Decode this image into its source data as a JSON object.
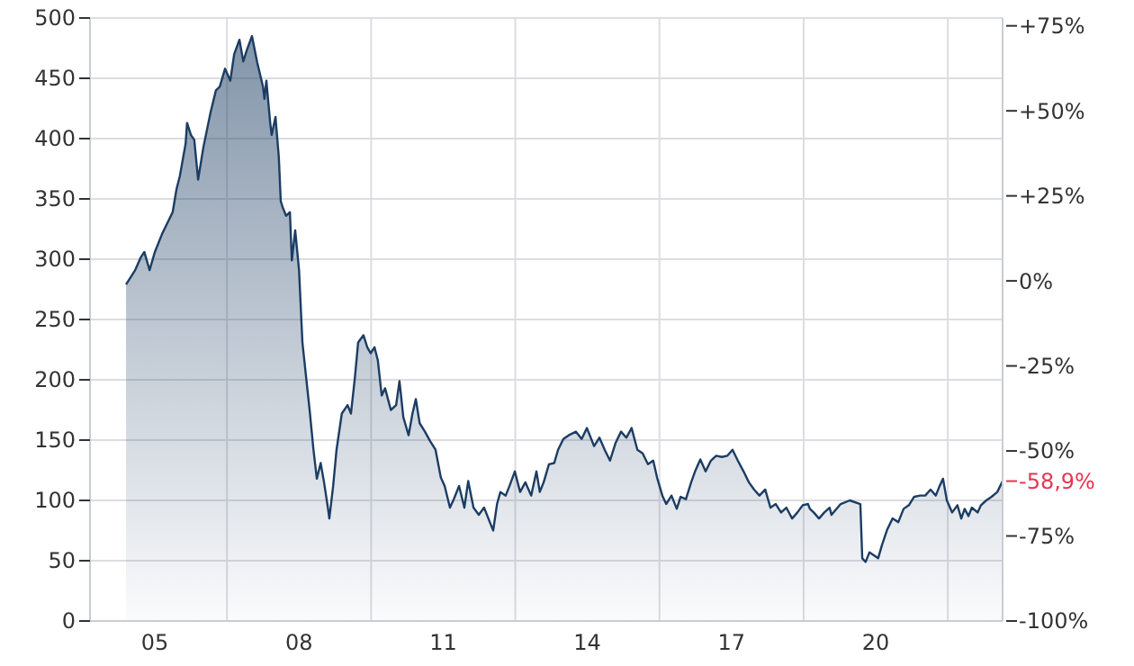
{
  "chart_data": {
    "type": "area",
    "x": [
      2004.4,
      2004.59,
      2004.7,
      2004.78,
      2004.89,
      2005.0,
      2005.15,
      2005.26,
      2005.37,
      2005.45,
      2005.52,
      2005.64,
      2005.67,
      2005.75,
      2005.82,
      2005.9,
      2006.01,
      2006.16,
      2006.27,
      2006.35,
      2006.46,
      2006.57,
      2006.65,
      2006.76,
      2006.84,
      2006.91,
      2007.02,
      2007.13,
      2007.25,
      2007.28,
      2007.32,
      2007.4,
      2007.43,
      2007.51,
      2007.58,
      2007.62,
      2007.66,
      2007.73,
      2007.81,
      2007.85,
      2007.92,
      2008.0,
      2008.07,
      2008.15,
      2008.22,
      2008.3,
      2008.37,
      2008.45,
      2008.52,
      2008.6,
      2008.63,
      2008.71,
      2008.78,
      2008.89,
      2009.01,
      2009.08,
      2009.16,
      2009.23,
      2009.34,
      2009.42,
      2009.49,
      2009.57,
      2009.64,
      2009.72,
      2009.79,
      2009.91,
      2010.02,
      2010.09,
      2010.17,
      2010.28,
      2010.36,
      2010.43,
      2010.51,
      2010.62,
      2010.73,
      2010.84,
      2010.95,
      2011.03,
      2011.14,
      2011.22,
      2011.33,
      2011.44,
      2011.52,
      2011.63,
      2011.74,
      2011.85,
      2011.97,
      2012.04,
      2012.12,
      2012.19,
      2012.3,
      2012.38,
      2012.49,
      2012.6,
      2012.71,
      2012.83,
      2012.94,
      2013.01,
      2013.09,
      2013.2,
      2013.31,
      2013.39,
      2013.5,
      2013.61,
      2013.76,
      2013.88,
      2013.99,
      2014.14,
      2014.25,
      2014.36,
      2014.47,
      2014.59,
      2014.7,
      2014.81,
      2014.92,
      2015.04,
      2015.15,
      2015.26,
      2015.37,
      2015.45,
      2015.56,
      2015.64,
      2015.75,
      2015.86,
      2015.94,
      2016.05,
      2016.16,
      2016.24,
      2016.35,
      2016.46,
      2016.57,
      2016.68,
      2016.8,
      2016.91,
      2017.02,
      2017.13,
      2017.25,
      2017.36,
      2017.47,
      2017.58,
      2017.7,
      2017.81,
      2017.92,
      2018.03,
      2018.14,
      2018.26,
      2018.37,
      2018.48,
      2018.59,
      2018.63,
      2018.71,
      2018.82,
      2018.93,
      2019.04,
      2019.08,
      2019.27,
      2019.46,
      2019.68,
      2019.72,
      2019.79,
      2019.87,
      2019.94,
      2020.05,
      2020.13,
      2020.24,
      2020.35,
      2020.47,
      2020.58,
      2020.69,
      2020.8,
      2020.92,
      2021.03,
      2021.14,
      2021.25,
      2021.33,
      2021.4,
      2021.48,
      2021.59,
      2021.7,
      2021.78,
      2021.85,
      2021.93,
      2022.0,
      2022.12,
      2022.19,
      2022.3,
      2022.41,
      2022.53,
      2022.64
    ],
    "series": [
      {
        "color": "#1c3d63",
        "values": [
          279,
          291,
          301,
          306,
          291,
          306,
          321,
          330,
          339,
          358,
          369,
          396,
          413,
          403,
          399,
          366,
          393,
          422,
          440,
          443,
          458,
          448,
          470,
          482,
          464,
          473,
          485,
          463,
          443,
          433,
          448,
          413,
          403,
          418,
          384,
          348,
          343,
          336,
          339,
          299,
          324,
          291,
          231,
          201,
          175,
          142,
          118,
          131,
          115,
          94,
          85,
          112,
          142,
          172,
          179,
          172,
          201,
          231,
          237,
          227,
          222,
          227,
          216,
          187,
          193,
          175,
          179,
          199,
          169,
          154,
          172,
          184,
          164,
          157,
          149,
          142,
          119,
          112,
          94,
          101,
          112,
          94,
          116,
          94,
          88,
          94,
          82,
          75,
          97,
          107,
          104,
          112,
          124,
          107,
          115,
          104,
          124,
          107,
          115,
          130,
          131,
          142,
          151,
          154,
          157,
          151,
          160,
          145,
          152,
          142,
          133,
          148,
          157,
          152,
          160,
          142,
          139,
          130,
          133,
          119,
          104,
          97,
          104,
          93,
          103,
          101,
          115,
          124,
          134,
          124,
          133,
          137,
          136,
          137,
          142,
          133,
          124,
          115,
          109,
          104,
          109,
          94,
          97,
          90,
          94,
          85,
          90,
          96,
          97,
          93,
          90,
          85,
          90,
          94,
          88,
          97,
          100,
          97,
          52,
          49,
          57,
          55,
          52,
          63,
          76,
          85,
          82,
          93,
          96,
          103,
          104,
          104,
          109,
          104,
          112,
          118,
          100,
          90,
          96,
          85,
          93,
          87,
          94,
          90,
          96,
          100,
          103,
          107,
          116
        ]
      }
    ],
    "xlim": [
      2003.65,
      2022.64
    ],
    "xticks": [
      {
        "value": 2005,
        "label": "05"
      },
      {
        "value": 2006.5,
        "label": null
      },
      {
        "value": 2008,
        "label": "08"
      },
      {
        "value": 2009.5,
        "label": null
      },
      {
        "value": 2011,
        "label": "11"
      },
      {
        "value": 2012.5,
        "label": null
      },
      {
        "value": 2014,
        "label": "14"
      },
      {
        "value": 2015.5,
        "label": null
      },
      {
        "value": 2017,
        "label": "17"
      },
      {
        "value": 2018.5,
        "label": null
      },
      {
        "value": 2020,
        "label": "20"
      },
      {
        "value": 2021.5,
        "label": null
      }
    ],
    "ylim": [
      0,
      500
    ],
    "yticks": [
      0,
      50,
      100,
      150,
      200,
      250,
      300,
      350,
      400,
      450,
      500
    ],
    "y2lim": [
      -100,
      77.3
    ],
    "y2ticks": [
      {
        "value": 75,
        "label": "+75%"
      },
      {
        "value": 50,
        "label": "+50%"
      },
      {
        "value": 25,
        "label": "+25%"
      },
      {
        "value": 0,
        "label": "0%"
      },
      {
        "value": -25,
        "label": "-25%"
      },
      {
        "value": -50,
        "label": "-50%"
      },
      {
        "value": -75,
        "label": "-75%"
      },
      {
        "value": -100,
        "label": "-100%"
      }
    ],
    "annotations": [
      {
        "text": "-58,9%",
        "x": 2022.64,
        "y": 116
      }
    ],
    "grid": true
  }
}
